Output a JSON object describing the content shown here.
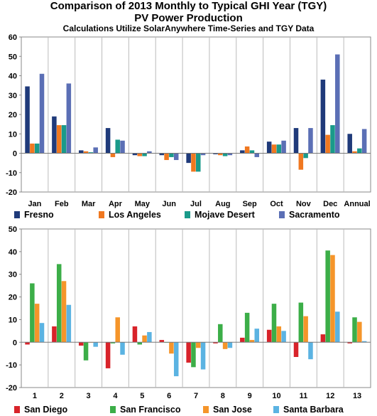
{
  "header": {
    "title_line1": "Comparison of 2013 Monthly to  Typical GHI Year (TGY)",
    "title_line2": "PV Power Production",
    "subtitle": "Calculations Utilize SolarAnywhere Time-Series and TGY Data"
  },
  "chart_data": [
    {
      "type": "bar",
      "categories": [
        "Jan",
        "Feb",
        "Mar",
        "Apr",
        "May",
        "Jun",
        "Jul",
        "Aug",
        "Sep",
        "Oct",
        "Nov",
        "Dec",
        "Annual"
      ],
      "ylim": [
        -20,
        60
      ],
      "yticks": [
        -20,
        -10,
        0,
        10,
        20,
        30,
        40,
        50,
        60
      ],
      "grid": "vertical separators",
      "legend": "bottom",
      "series": [
        {
          "name": "Fresno",
          "color": "#1f3a7a",
          "values": [
            34.5,
            19,
            1.5,
            13,
            -1,
            -1,
            -5,
            -0.5,
            1.5,
            6,
            13,
            38,
            10
          ]
        },
        {
          "name": "Los Angeles",
          "color": "#f07820",
          "values": [
            5,
            14.5,
            1,
            -2,
            -1.5,
            -3.5,
            -9.5,
            -1,
            3.5,
            4.5,
            -8.5,
            9.5,
            1
          ]
        },
        {
          "name": "Mojave Desert",
          "color": "#1a9a8a",
          "values": [
            5,
            14.5,
            0.5,
            7,
            -1.5,
            -2,
            -9.5,
            -1.5,
            1.5,
            4.5,
            -2.5,
            14.5,
            2.5
          ]
        },
        {
          "name": "Sacramento",
          "color": "#5b6fb5",
          "values": [
            41,
            36,
            3,
            6.5,
            1,
            -3.5,
            -1,
            -1,
            -2,
            6.5,
            13,
            51,
            12.5
          ]
        }
      ]
    },
    {
      "type": "bar",
      "categories": [
        "1",
        "2",
        "3",
        "4",
        "5",
        "6",
        "7",
        "8",
        "9",
        "10",
        "11",
        "12",
        "13"
      ],
      "ylim": [
        -20,
        50
      ],
      "yticks": [
        -20,
        -10,
        0,
        10,
        20,
        30,
        40,
        50
      ],
      "grid": "vertical separators",
      "legend": "bottom",
      "series": [
        {
          "name": "San Diego",
          "color": "#d8232a",
          "values": [
            -1,
            7,
            -1.5,
            -11.5,
            7,
            1,
            -9,
            -0.5,
            2,
            5.5,
            -6.5,
            3.5,
            -0.5
          ]
        },
        {
          "name": "San Francisco",
          "color": "#3cae48",
          "values": [
            26,
            34.5,
            -8,
            -0.5,
            -1,
            0,
            -11,
            8,
            13,
            17,
            17.5,
            40.5,
            11
          ]
        },
        {
          "name": "San Jose",
          "color": "#f5952a",
          "values": [
            17,
            27,
            0,
            11,
            3,
            -5,
            -2.5,
            -3,
            1,
            7,
            11.5,
            38.5,
            9
          ]
        },
        {
          "name": "Santa Barbara",
          "color": "#5bb3e2",
          "values": [
            8.5,
            16.5,
            -2,
            -5.5,
            4.5,
            -15,
            -12,
            -2.5,
            6,
            5,
            -7.5,
            13.5,
            0.5
          ]
        }
      ]
    }
  ]
}
